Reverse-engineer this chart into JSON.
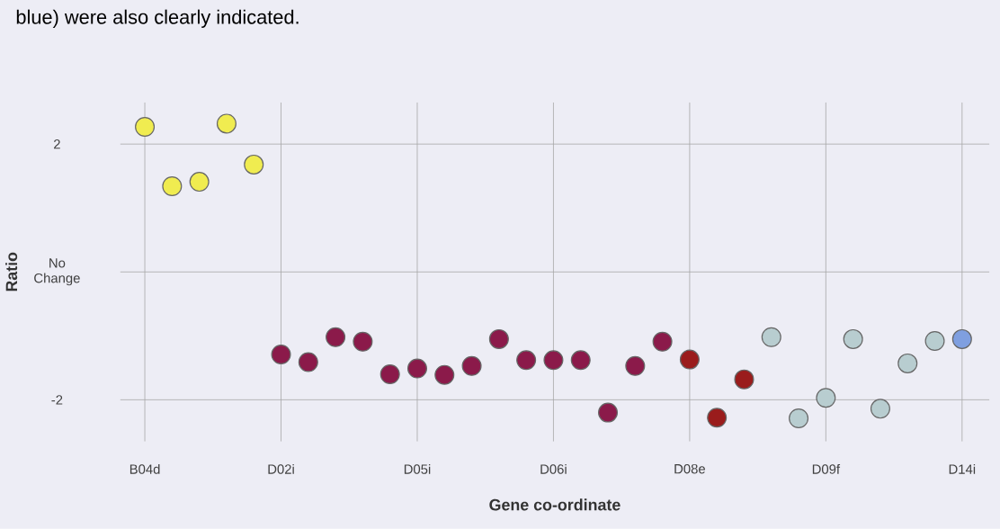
{
  "chart_data": {
    "type": "scatter",
    "xlabel": "Gene co-ordinate",
    "ylabel": "Ratio",
    "annotations": [
      "blue) were also clearly indicated."
    ],
    "categories": [
      "B04d",
      null,
      null,
      null,
      null,
      "D02i",
      null,
      null,
      null,
      null,
      "D05i",
      null,
      null,
      null,
      null,
      "D06i",
      null,
      null,
      null,
      null,
      "D08e",
      null,
      null,
      null,
      null,
      "D09f",
      null,
      null,
      null,
      null,
      "D14i"
    ],
    "ylim": [
      -2.65,
      2.65
    ],
    "yticks": [
      {
        "value": -2,
        "label": "-2"
      },
      {
        "value": 0,
        "label": "No Change"
      },
      {
        "value": 2,
        "label": "2"
      }
    ],
    "grid": true,
    "marker": "circle",
    "series": [
      {
        "color": "#f0ec50",
        "values": [
          2.27,
          1.34,
          1.41,
          2.32,
          1.68,
          null,
          null,
          null,
          null,
          null,
          null,
          null,
          null,
          null,
          null,
          null,
          null,
          null,
          null,
          null,
          null,
          null,
          null,
          null,
          null,
          null,
          null,
          null,
          null,
          null,
          null
        ]
      },
      {
        "color": "#8b1a4a",
        "values": [
          null,
          null,
          null,
          null,
          null,
          -1.29,
          -1.41,
          -1.02,
          -1.09,
          -1.6,
          -1.51,
          -1.61,
          -1.47,
          -1.05,
          -1.38,
          -1.38,
          -1.38,
          -2.2,
          -1.47,
          -1.09,
          null,
          null,
          null,
          null,
          null,
          null,
          null,
          null,
          null,
          null,
          null
        ]
      },
      {
        "color": "#9a1c1c",
        "values": [
          null,
          null,
          null,
          null,
          null,
          null,
          null,
          null,
          null,
          null,
          null,
          null,
          null,
          null,
          null,
          null,
          null,
          null,
          null,
          null,
          -1.37,
          -2.28,
          -1.68,
          null,
          null,
          null,
          null,
          null,
          null,
          null,
          null
        ]
      },
      {
        "color": "#b8cdd0",
        "values": [
          null,
          null,
          null,
          null,
          null,
          null,
          null,
          null,
          null,
          null,
          null,
          null,
          null,
          null,
          null,
          null,
          null,
          null,
          null,
          null,
          null,
          null,
          null,
          -1.02,
          -2.29,
          -1.97,
          -1.05,
          -2.14,
          -1.43,
          -1.08,
          null
        ]
      },
      {
        "color": "#7f9fe0",
        "values": [
          null,
          null,
          null,
          null,
          null,
          null,
          null,
          null,
          null,
          null,
          null,
          null,
          null,
          null,
          null,
          null,
          null,
          null,
          null,
          null,
          null,
          null,
          null,
          null,
          null,
          null,
          null,
          null,
          null,
          null,
          -1.05
        ]
      }
    ]
  }
}
